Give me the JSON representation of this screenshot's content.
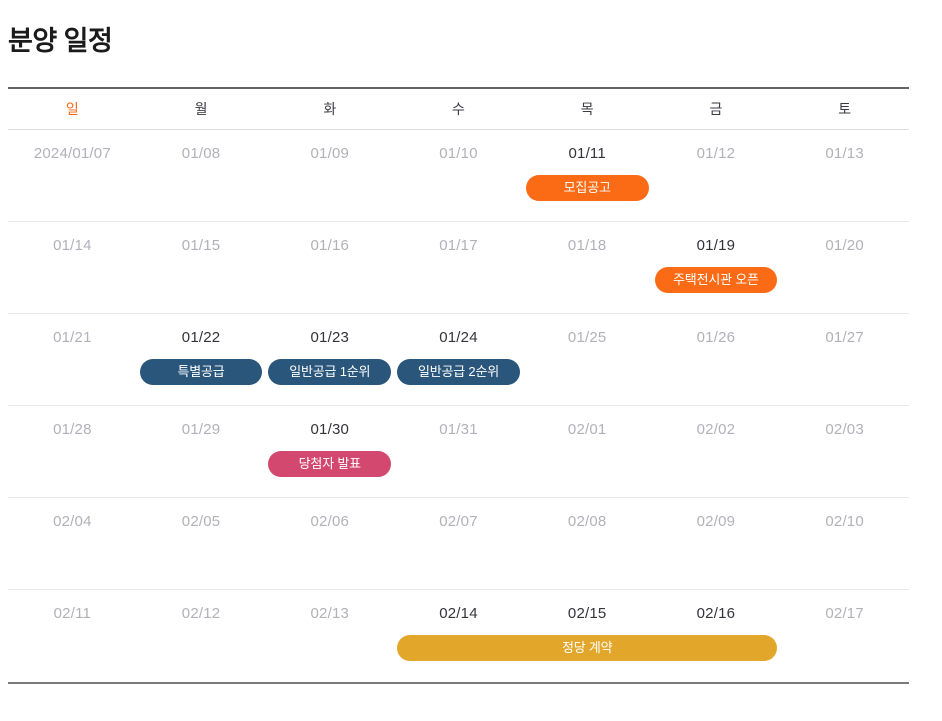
{
  "page": {
    "title": "분양 일정"
  },
  "calendar": {
    "weekday_header": [
      {
        "label": "일",
        "color": "#f96a15"
      },
      {
        "label": "월",
        "color": "#3a3a42"
      },
      {
        "label": "화",
        "color": "#3a3a42"
      },
      {
        "label": "수",
        "color": "#3a3a42"
      },
      {
        "label": "목",
        "color": "#3a3a42"
      },
      {
        "label": "금",
        "color": "#3a3a42"
      },
      {
        "label": "토",
        "color": "#3a3a42"
      }
    ],
    "event_colors": {
      "orange": "#fb6a15",
      "navy": "#2b567b",
      "pink": "#d2486f",
      "gold": "#e2a62b"
    },
    "weeks": [
      {
        "days": [
          {
            "date": "2024/01/07",
            "muted": true
          },
          {
            "date": "01/08",
            "muted": true
          },
          {
            "date": "01/09",
            "muted": true
          },
          {
            "date": "01/10",
            "muted": true
          },
          {
            "date": "01/11",
            "muted": false,
            "event": {
              "label": "모집공고",
              "color": "orange",
              "span": 1
            }
          },
          {
            "date": "01/12",
            "muted": true
          },
          {
            "date": "01/13",
            "muted": true
          }
        ]
      },
      {
        "days": [
          {
            "date": "01/14",
            "muted": true
          },
          {
            "date": "01/15",
            "muted": true
          },
          {
            "date": "01/16",
            "muted": true
          },
          {
            "date": "01/17",
            "muted": true
          },
          {
            "date": "01/18",
            "muted": true
          },
          {
            "date": "01/19",
            "muted": false,
            "event": {
              "label": "주택전시관 오픈",
              "color": "orange",
              "span": 1
            }
          },
          {
            "date": "01/20",
            "muted": true
          }
        ]
      },
      {
        "days": [
          {
            "date": "01/21",
            "muted": true
          },
          {
            "date": "01/22",
            "muted": false,
            "event": {
              "label": "특별공급",
              "color": "navy",
              "span": 1
            }
          },
          {
            "date": "01/23",
            "muted": false,
            "event": {
              "label": "일반공급 1순위",
              "color": "navy",
              "span": 1
            }
          },
          {
            "date": "01/24",
            "muted": false,
            "event": {
              "label": "일반공급 2순위",
              "color": "navy",
              "span": 1
            }
          },
          {
            "date": "01/25",
            "muted": true
          },
          {
            "date": "01/26",
            "muted": true
          },
          {
            "date": "01/27",
            "muted": true
          }
        ]
      },
      {
        "days": [
          {
            "date": "01/28",
            "muted": true
          },
          {
            "date": "01/29",
            "muted": true
          },
          {
            "date": "01/30",
            "muted": false,
            "event": {
              "label": "당첨자 발표",
              "color": "pink",
              "span": 1
            }
          },
          {
            "date": "01/31",
            "muted": true
          },
          {
            "date": "02/01",
            "muted": true
          },
          {
            "date": "02/02",
            "muted": true
          },
          {
            "date": "02/03",
            "muted": true
          }
        ]
      },
      {
        "days": [
          {
            "date": "02/04",
            "muted": true
          },
          {
            "date": "02/05",
            "muted": true
          },
          {
            "date": "02/06",
            "muted": true
          },
          {
            "date": "02/07",
            "muted": true
          },
          {
            "date": "02/08",
            "muted": true
          },
          {
            "date": "02/09",
            "muted": true
          },
          {
            "date": "02/10",
            "muted": true
          }
        ]
      },
      {
        "days": [
          {
            "date": "02/11",
            "muted": true
          },
          {
            "date": "02/12",
            "muted": true
          },
          {
            "date": "02/13",
            "muted": true
          },
          {
            "date": "02/14",
            "muted": false,
            "event": {
              "label": "정당 계약",
              "color": "gold",
              "span": 3
            }
          },
          {
            "date": "02/15",
            "muted": false
          },
          {
            "date": "02/16",
            "muted": false
          },
          {
            "date": "02/17",
            "muted": true
          }
        ]
      }
    ]
  }
}
